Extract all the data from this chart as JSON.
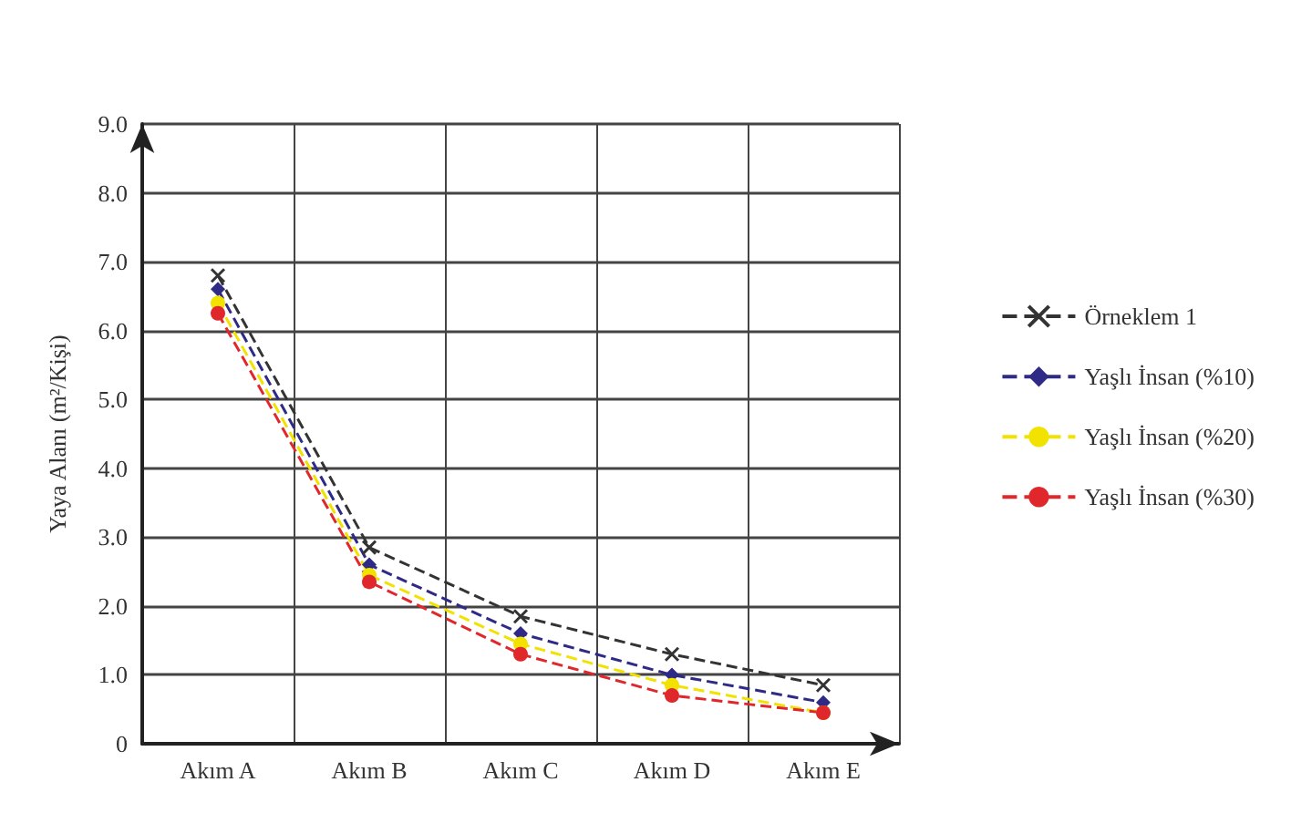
{
  "chart_data": {
    "type": "line",
    "ylabel": "Yaya Alanı (m²/Kişi)",
    "categories": [
      "Akım A",
      "Akım B",
      "Akım C",
      "Akım D",
      "Akım E"
    ],
    "series": [
      {
        "name": "Örneklem 1",
        "color": "#333333",
        "marker": "cross",
        "values": [
          6.8,
          2.85,
          1.85,
          1.3,
          0.85
        ]
      },
      {
        "name": "Yaşlı İnsan (%10)",
        "color": "#2e2a86",
        "marker": "diamond",
        "values": [
          6.6,
          2.6,
          1.6,
          1.0,
          0.6
        ]
      },
      {
        "name": "Yaşlı İnsan (%20)",
        "color": "#f2e200",
        "marker": "circle",
        "values": [
          6.4,
          2.45,
          1.45,
          0.85,
          0.45
        ]
      },
      {
        "name": "Yaşlı İnsan (%30)",
        "color": "#e0282c",
        "marker": "circle",
        "values": [
          6.25,
          2.35,
          1.3,
          0.7,
          0.45
        ]
      }
    ],
    "ylim": [
      0,
      9
    ],
    "yticks": [
      0,
      {
        "value": 1,
        "label": "1.0"
      },
      {
        "value": 2,
        "label": "2.0"
      },
      {
        "value": 3,
        "label": "3.0"
      },
      {
        "value": 4,
        "label": "4.0"
      },
      {
        "value": 5,
        "label": "5.0"
      },
      {
        "value": 6,
        "label": "6.0"
      },
      {
        "value": 7,
        "label": "7.0"
      },
      {
        "value": 8,
        "label": "8.0"
      },
      {
        "value": 9,
        "label": "9.0"
      }
    ],
    "grid": true,
    "legend": "right",
    "line_style": "dashed"
  }
}
